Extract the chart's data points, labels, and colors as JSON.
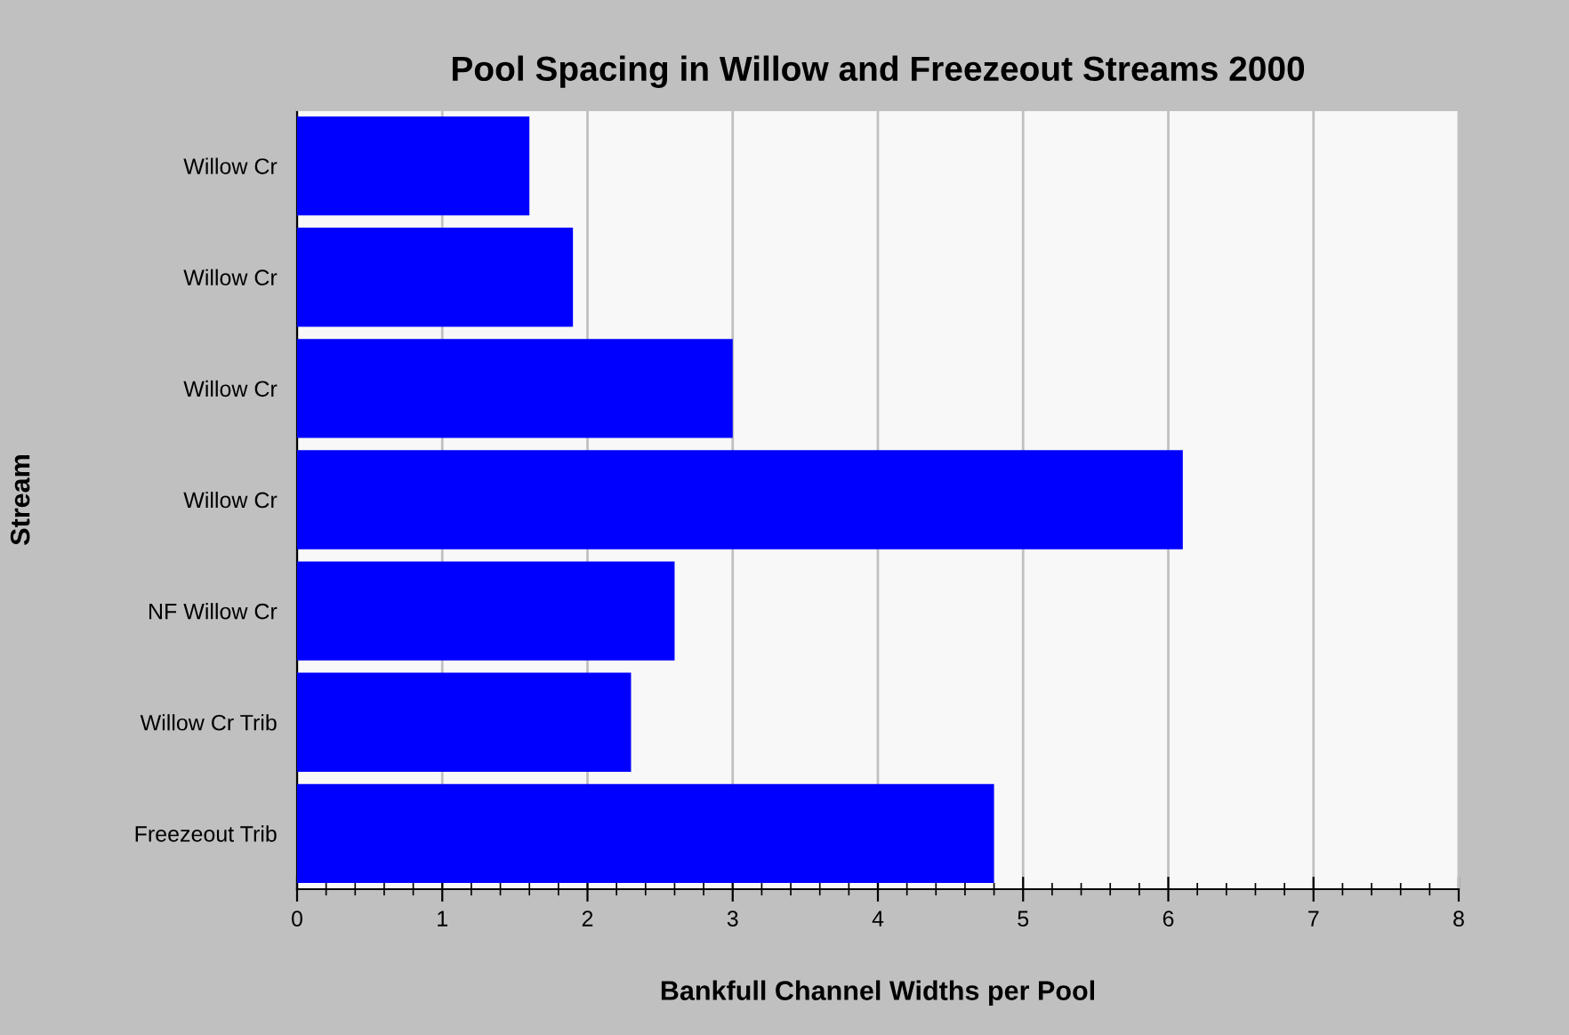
{
  "chart_data": {
    "type": "bar",
    "orientation": "horizontal",
    "title": "Pool Spacing in Willow and Freezeout Streams 2000",
    "xlabel": "Bankfull Channel Widths per Pool",
    "ylabel": "Stream",
    "categories": [
      "Willow Cr",
      "Willow Cr",
      "Willow Cr",
      "Willow Cr",
      "NF Willow Cr",
      "Willow Cr Trib",
      "Freezeout Trib"
    ],
    "values": [
      1.6,
      1.9,
      3.0,
      6.1,
      2.6,
      2.3,
      4.8
    ],
    "color": "#0000ff",
    "xlim": [
      0,
      8
    ],
    "xticks": [
      0,
      1,
      2,
      3,
      4,
      5,
      6,
      7,
      8
    ],
    "grid": "x"
  }
}
